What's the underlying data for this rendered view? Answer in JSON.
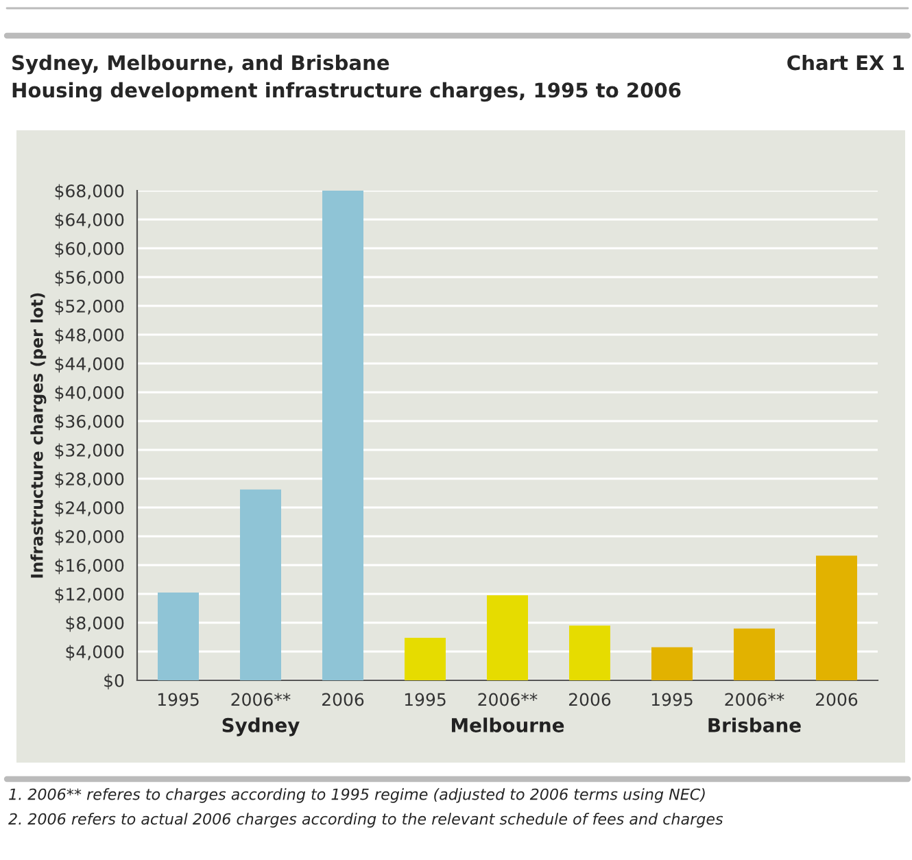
{
  "chart_data": {
    "type": "bar",
    "title": "Sydney, Melbourne, and Brisbane",
    "subtitle": "Housing development infrastructure charges, 1995 to 2006",
    "ylabel": "Infrastructure charges (per lot)",
    "categories": [
      "1995",
      "2006**",
      "2006",
      "1995",
      "2006**",
      "2006",
      "1995",
      "2006**",
      "2006"
    ],
    "series": [
      {
        "name": "Sydney",
        "color": "#8fc4d6",
        "values": [
          12200,
          26500,
          68000,
          null,
          null,
          null,
          null,
          null,
          null
        ]
      },
      {
        "name": "Melbourne",
        "color": "#e6dc00",
        "values": [
          null,
          null,
          null,
          5900,
          11800,
          7600,
          null,
          null,
          null
        ]
      },
      {
        "name": "Brisbane",
        "color": "#e2b200",
        "values": [
          null,
          null,
          null,
          null,
          null,
          null,
          4600,
          7200,
          17300
        ]
      }
    ],
    "ylim": [
      0,
      68000
    ],
    "yticks": [
      {
        "value": 0,
        "label": "$0"
      },
      {
        "value": 4000,
        "label": "$4,000"
      },
      {
        "value": 8000,
        "label": "$8,000"
      },
      {
        "value": 12000,
        "label": "$12,000"
      },
      {
        "value": 16000,
        "label": "$16,000"
      },
      {
        "value": 20000,
        "label": "$20,000"
      },
      {
        "value": 24000,
        "label": "$24,000"
      },
      {
        "value": 28000,
        "label": "$28,000"
      },
      {
        "value": 32000,
        "label": "$32,000"
      },
      {
        "value": 36000,
        "label": "$36,000"
      },
      {
        "value": 40000,
        "label": "$40,000"
      },
      {
        "value": 44000,
        "label": "$44,000"
      },
      {
        "value": 48000,
        "label": "$48,000"
      },
      {
        "value": 52000,
        "label": "$52,000"
      },
      {
        "value": 56000,
        "label": "$56,000"
      },
      {
        "value": 60000,
        "label": "$60,000"
      },
      {
        "value": 64000,
        "label": "$64,000"
      },
      {
        "value": 68000,
        "label": "$68,000"
      }
    ],
    "grid": "y",
    "legend": false,
    "annotations": [
      "Chart EX 1",
      "1. 2006** referes to charges according to 1995 regime (adjusted to 2006 terms using NEC)",
      "2. 2006 refers to actual 2006 charges according to the relevant schedule of fees and charges"
    ]
  }
}
